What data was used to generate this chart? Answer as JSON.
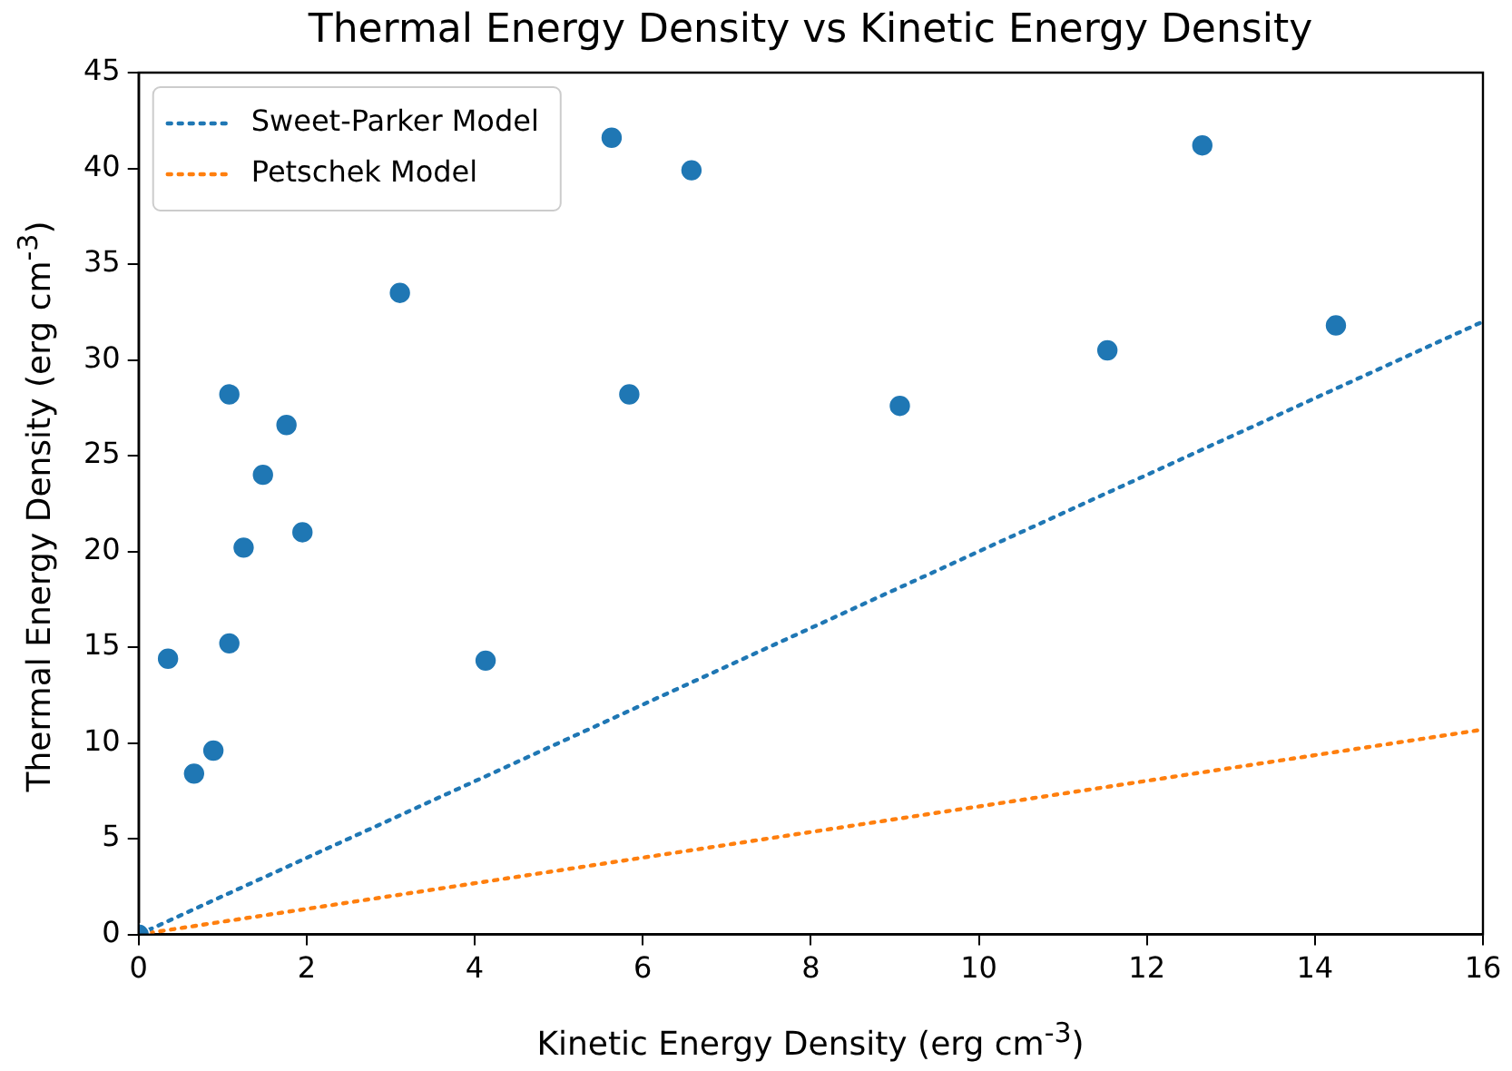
{
  "chart_data": {
    "type": "scatter",
    "title": "Thermal Energy Density vs Kinetic Energy Density",
    "xlabel": "Kinetic Energy Density (erg cm$^{-3}$)",
    "ylabel": "Thermal Energy Density (erg cm$^{-3}$)",
    "xlim": [
      0,
      16
    ],
    "xticks": [
      0,
      2,
      4,
      6,
      8,
      10,
      12,
      14,
      16
    ],
    "ylim": [
      0,
      45
    ],
    "yticks": [
      0,
      5,
      10,
      15,
      20,
      25,
      30,
      35,
      40,
      45
    ],
    "legend": "top left",
    "series": [
      {
        "type": "scatter",
        "color": "#1f77b4",
        "marker": "circle",
        "x": [
          0,
          0.35,
          0.66,
          0.89,
          1.08,
          1.08,
          1.25,
          1.48,
          1.76,
          1.95,
          3.11,
          4.13,
          5.63,
          5.84,
          6.58,
          9.06,
          11.53,
          12.66,
          14.25
        ],
        "values": [
          0,
          14.4,
          8.4,
          9.6,
          28.2,
          15.2,
          20.2,
          24.0,
          26.6,
          21.0,
          33.5,
          14.3,
          41.6,
          28.2,
          39.9,
          27.6,
          30.5,
          41.2,
          31.8
        ]
      },
      {
        "type": "line",
        "name": "Sweet-Parker Model",
        "color": "#1f77b4",
        "line_style": "dotted",
        "x": [
          0,
          16
        ],
        "values": [
          0,
          32
        ]
      },
      {
        "type": "line",
        "name": "Petschek Model",
        "color": "#ff7f0e",
        "line_style": "dotted",
        "x": [
          0,
          16
        ],
        "values": [
          0,
          10.7
        ]
      }
    ]
  }
}
